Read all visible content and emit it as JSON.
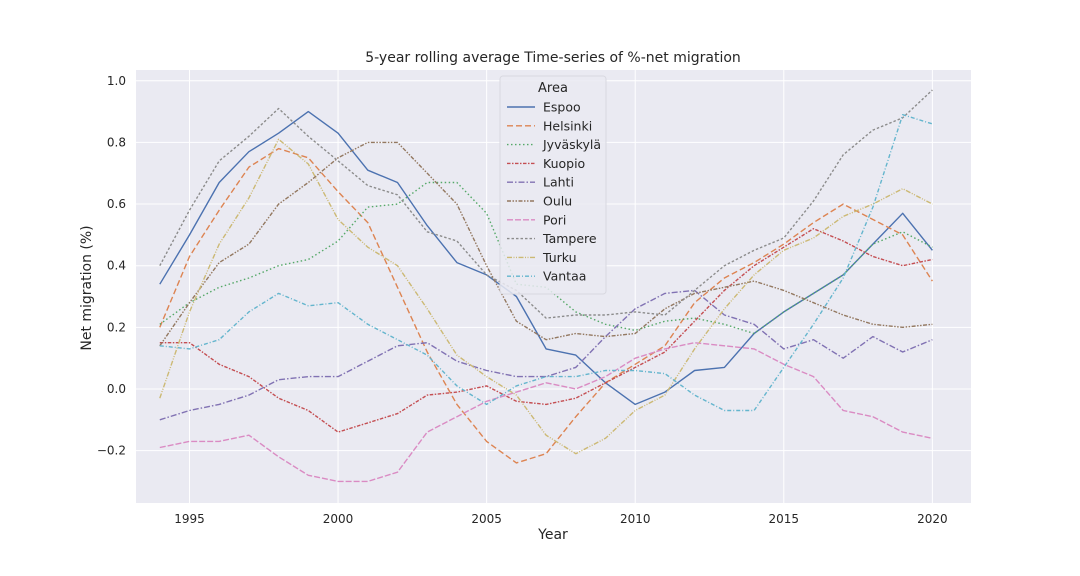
{
  "chart_data": {
    "type": "line",
    "title": "5-year rolling average Time-series of %-net migration",
    "xlabel": "Year",
    "ylabel": "Net migration (%)",
    "xlim": [
      1993.2,
      2021.3
    ],
    "ylim": [
      -0.37,
      1.035
    ],
    "xticks": [
      1995,
      2000,
      2005,
      2010,
      2015,
      2020
    ],
    "yticks": [
      -0.2,
      0.0,
      0.2,
      0.4,
      0.6,
      0.8,
      1.0
    ],
    "ytick_labels": [
      "−0.2",
      "0.0",
      "0.2",
      "0.4",
      "0.6",
      "0.8",
      "1.0"
    ],
    "grid": true,
    "background": "#eaeaf2",
    "legend": {
      "title": "Area",
      "placement": "top-center"
    },
    "x": [
      1994,
      1995,
      1996,
      1997,
      1998,
      1999,
      2000,
      2001,
      2002,
      2003,
      2004,
      2005,
      2006,
      2007,
      2008,
      2009,
      2010,
      2011,
      2012,
      2013,
      2014,
      2015,
      2016,
      2017,
      2018,
      2019,
      2020
    ],
    "series": [
      {
        "name": "Espoo",
        "color": "#4c72b0",
        "dash": "",
        "values": [
          0.34,
          0.5,
          0.67,
          0.77,
          0.83,
          0.9,
          0.83,
          0.71,
          0.67,
          0.53,
          0.41,
          0.37,
          0.3,
          0.13,
          0.11,
          0.02,
          -0.05,
          -0.01,
          0.06,
          0.07,
          0.18,
          0.25,
          0.31,
          0.37,
          0.47,
          0.57,
          0.45
        ]
      },
      {
        "name": "Helsinki",
        "color": "#dd8452",
        "dash": "6,3",
        "values": [
          0.2,
          0.43,
          0.58,
          0.72,
          0.78,
          0.75,
          0.64,
          0.54,
          0.33,
          0.12,
          -0.05,
          -0.17,
          -0.24,
          -0.21,
          -0.09,
          0.02,
          0.08,
          0.14,
          0.28,
          0.36,
          0.41,
          0.47,
          0.54,
          0.6,
          0.55,
          0.5,
          0.35
        ]
      },
      {
        "name": "Jyväskylä",
        "color": "#55a868",
        "dash": "1.5,2.5",
        "values": [
          0.21,
          0.28,
          0.33,
          0.36,
          0.4,
          0.42,
          0.48,
          0.59,
          0.6,
          0.67,
          0.67,
          0.57,
          0.34,
          0.33,
          0.25,
          0.21,
          0.19,
          0.22,
          0.23,
          0.21,
          0.18,
          0.25,
          0.31,
          0.37,
          0.47,
          0.51,
          0.46
        ]
      },
      {
        "name": "Kuopio",
        "color": "#c44e52",
        "dash": "3.5,1.5,1.5,1.5",
        "values": [
          0.15,
          0.15,
          0.08,
          0.04,
          -0.03,
          -0.07,
          -0.14,
          -0.11,
          -0.08,
          -0.02,
          -0.01,
          0.01,
          -0.04,
          -0.05,
          -0.03,
          0.02,
          0.07,
          0.12,
          0.22,
          0.32,
          0.4,
          0.46,
          0.52,
          0.48,
          0.43,
          0.4,
          0.42
        ]
      },
      {
        "name": "Lahti",
        "color": "#8172b3",
        "dash": "6,2,1.5,2",
        "values": [
          -0.1,
          -0.07,
          -0.05,
          -0.02,
          0.03,
          0.04,
          0.04,
          0.09,
          0.14,
          0.15,
          0.09,
          0.06,
          0.04,
          0.04,
          0.07,
          0.17,
          0.26,
          0.31,
          0.32,
          0.24,
          0.21,
          0.13,
          0.16,
          0.1,
          0.17,
          0.12,
          0.16
        ]
      },
      {
        "name": "Oulu",
        "color": "#937860",
        "dash": "4,1.5,1.5,1.5,1.5,1.5",
        "values": [
          0.14,
          0.28,
          0.41,
          0.47,
          0.6,
          0.67,
          0.75,
          0.8,
          0.8,
          0.7,
          0.6,
          0.4,
          0.22,
          0.16,
          0.18,
          0.17,
          0.18,
          0.26,
          0.31,
          0.33,
          0.35,
          0.32,
          0.28,
          0.24,
          0.21,
          0.2,
          0.21
        ]
      },
      {
        "name": "Pori",
        "color": "#da8bc3",
        "dash": "6,2",
        "values": [
          -0.19,
          -0.17,
          -0.17,
          -0.15,
          -0.22,
          -0.28,
          -0.3,
          -0.3,
          -0.27,
          -0.14,
          -0.09,
          -0.04,
          -0.01,
          0.02,
          0.0,
          0.04,
          0.1,
          0.13,
          0.15,
          0.14,
          0.13,
          0.08,
          0.04,
          -0.07,
          -0.09,
          -0.14,
          -0.16
        ]
      },
      {
        "name": "Tampere",
        "color": "#8c8c8c",
        "dash": "2.5,2",
        "values": [
          0.4,
          0.58,
          0.74,
          0.82,
          0.91,
          0.82,
          0.74,
          0.66,
          0.63,
          0.51,
          0.48,
          0.37,
          0.32,
          0.23,
          0.24,
          0.24,
          0.25,
          0.24,
          0.32,
          0.4,
          0.45,
          0.49,
          0.61,
          0.76,
          0.84,
          0.88,
          0.97
        ]
      },
      {
        "name": "Turku",
        "color": "#ccb974",
        "dash": "5,1.5,1,1.5,1,1.5",
        "values": [
          -0.03,
          0.25,
          0.47,
          0.62,
          0.81,
          0.73,
          0.55,
          0.46,
          0.4,
          0.26,
          0.11,
          0.04,
          -0.02,
          -0.15,
          -0.21,
          -0.16,
          -0.07,
          -0.02,
          0.13,
          0.26,
          0.37,
          0.45,
          0.49,
          0.56,
          0.6,
          0.65,
          0.6
        ]
      },
      {
        "name": "Vantaa",
        "color": "#64b5cd",
        "dash": "4,2,1,2",
        "values": [
          0.14,
          0.13,
          0.16,
          0.25,
          0.31,
          0.27,
          0.28,
          0.21,
          0.16,
          0.11,
          0.01,
          -0.05,
          0.01,
          0.04,
          0.04,
          0.06,
          0.06,
          0.05,
          -0.02,
          -0.07,
          -0.07,
          0.07,
          0.21,
          0.36,
          0.59,
          0.89,
          0.86
        ]
      }
    ]
  }
}
